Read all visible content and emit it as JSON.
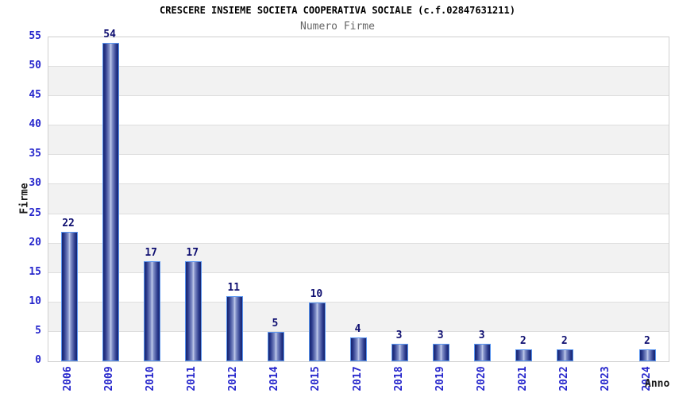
{
  "chart_data": {
    "type": "bar",
    "title": "CRESCERE INSIEME SOCIETA COOPERATIVA SOCIALE (c.f.02847631211)",
    "subtitle": "Numero Firme",
    "xlabel": "Anno",
    "ylabel": "Firme",
    "categories": [
      "2006",
      "2009",
      "2010",
      "2011",
      "2012",
      "2014",
      "2015",
      "2017",
      "2018",
      "2019",
      "2020",
      "2021",
      "2022",
      "2023",
      "2024"
    ],
    "values": [
      22,
      54,
      17,
      17,
      11,
      5,
      10,
      4,
      3,
      3,
      3,
      2,
      2,
      null,
      2
    ],
    "ylim": [
      0,
      55
    ],
    "ytick_step": 5,
    "yticks": [
      0,
      5,
      10,
      15,
      20,
      25,
      30,
      35,
      40,
      45,
      50,
      55
    ],
    "grid": true,
    "legend_position": "none",
    "band_style": "alternating horizontal gray/white bands every 5 units"
  },
  "colors": {
    "title": "#000000",
    "subtitle": "#666666",
    "tick_blue": "#2626cc",
    "value_navy": "#0e0e70",
    "axis_label": "#1a1a1a",
    "band_gray": "#f2f2f2",
    "grid_line": "#dedede",
    "plot_border": "#cfcfcf",
    "bar_edge": "#15246e",
    "bar_mid": "#c4cdeb",
    "bar_border": "#5a95f0",
    "background": "#ffffff"
  }
}
